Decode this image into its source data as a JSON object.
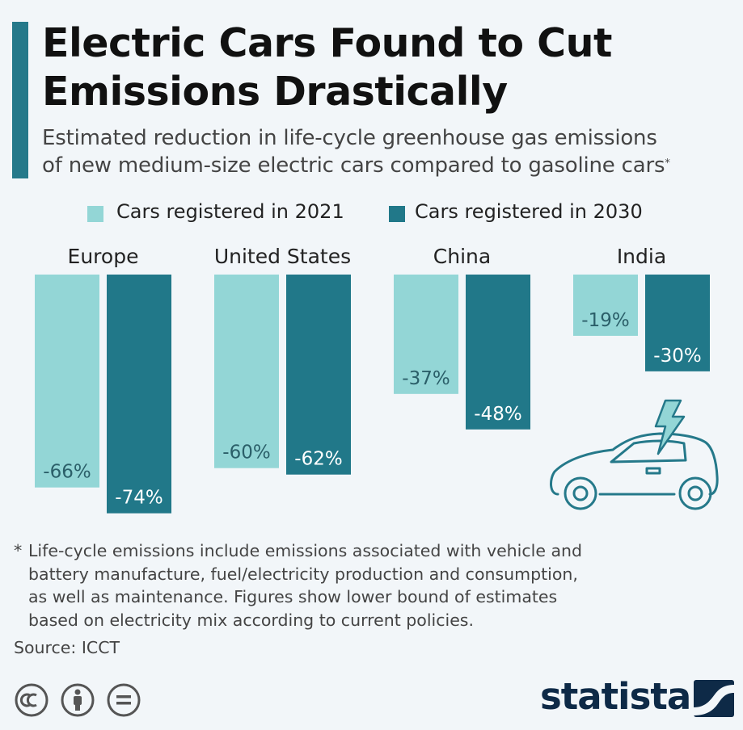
{
  "header": {
    "title_line1": "Electric Cars Found to Cut",
    "title_line2": "Emissions Drastically",
    "subtitle_line1": "Estimated reduction in life-cycle greenhouse gas emissions",
    "subtitle_line2": "of new medium-size electric cars compared to gasoline cars",
    "subtitle_mark": "*"
  },
  "colors": {
    "accent": "#25798a",
    "series_2021": "#93d6d6",
    "series_2030": "#217889",
    "background": "#f2f6f9"
  },
  "chart_data": {
    "type": "bar",
    "categories": [
      "Europe",
      "United States",
      "China",
      "India"
    ],
    "series": [
      {
        "name": "Cars registered in 2021",
        "values": [
          -66,
          -60,
          -37,
          -19
        ],
        "labels": [
          "-66%",
          "-60%",
          "-37%",
          "-19%"
        ]
      },
      {
        "name": "Cars registered in 2030",
        "values": [
          -74,
          -62,
          -48,
          -30
        ],
        "labels": [
          "-74%",
          "-62%",
          "-48%",
          "-30%"
        ]
      }
    ],
    "unit": "%",
    "legend": "top-left",
    "grid": false
  },
  "footnote": {
    "marker": "*",
    "lines": [
      "Life-cycle emissions include emissions associated with vehicle and",
      "battery manufacture, fuel/electricity production and consumption,",
      "as well as maintenance. Figures show lower bound of estimates",
      "based on electricity mix according to current policies."
    ]
  },
  "source": "Source: ICCT",
  "license_icons": [
    "cc-icon",
    "by-icon",
    "nd-icon"
  ],
  "brand": {
    "name": "statista",
    "icon": "statista-logo-icon"
  },
  "illustration": {
    "icon": "electric-car-icon"
  }
}
